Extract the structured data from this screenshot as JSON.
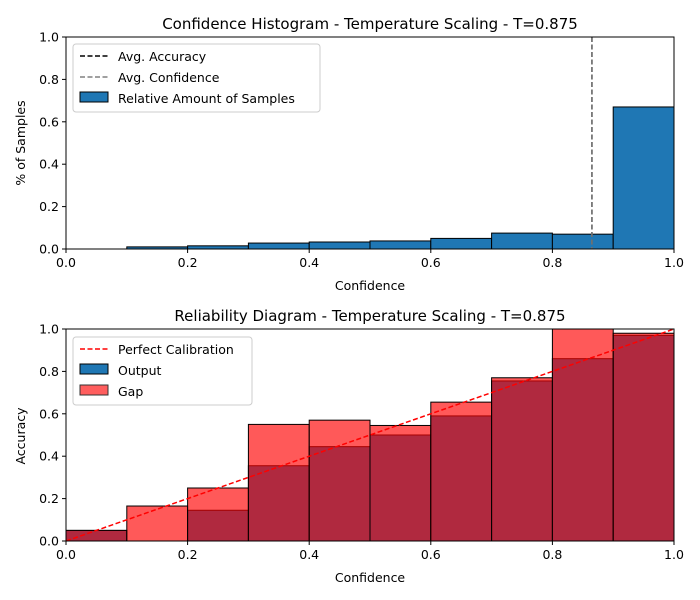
{
  "chart_data": [
    {
      "type": "bar",
      "title": "Confidence Histogram - Temperature Scaling - T=0.875",
      "xlabel": "Confidence",
      "ylabel": "% of Samples",
      "xlim": [
        0.0,
        1.0
      ],
      "ylim": [
        0.0,
        1.0
      ],
      "xticks": [
        "0.0",
        "0.2",
        "0.4",
        "0.6",
        "0.8",
        "1.0"
      ],
      "yticks": [
        "0.0",
        "0.2",
        "0.4",
        "0.6",
        "0.8",
        "1.0"
      ],
      "bins": [
        0.0,
        0.1,
        0.2,
        0.3,
        0.4,
        0.5,
        0.6,
        0.7,
        0.8,
        0.9
      ],
      "bin_width": 0.1,
      "series": [
        {
          "name": "Relative Amount of Samples",
          "values": [
            0.0,
            0.01,
            0.015,
            0.028,
            0.033,
            0.038,
            0.05,
            0.075,
            0.07,
            0.67
          ],
          "color": "#1f77b4"
        }
      ],
      "avg_accuracy": 0.865,
      "avg_confidence": 0.865,
      "legend": {
        "position": "top-left",
        "entries": [
          {
            "label": "Avg. Accuracy",
            "style": "dashed",
            "color": "#000000"
          },
          {
            "label": "Avg. Confidence",
            "style": "dashed",
            "color": "#808080"
          },
          {
            "label": "Relative Amount of Samples",
            "style": "patch",
            "color": "#1f77b4"
          }
        ]
      },
      "grid": false
    },
    {
      "type": "bar",
      "title": "Reliability Diagram - Temperature Scaling - T=0.875",
      "xlabel": "Confidence",
      "ylabel": "Accuracy",
      "xlim": [
        0.0,
        1.0
      ],
      "ylim": [
        0.0,
        1.0
      ],
      "xticks": [
        "0.0",
        "0.2",
        "0.4",
        "0.6",
        "0.8",
        "1.0"
      ],
      "yticks": [
        "0.0",
        "0.2",
        "0.4",
        "0.6",
        "0.8",
        "1.0"
      ],
      "bins": [
        0.0,
        0.1,
        0.2,
        0.3,
        0.4,
        0.5,
        0.6,
        0.7,
        0.8,
        0.9
      ],
      "bin_width": 0.1,
      "series": [
        {
          "name": "Output",
          "values": [
            0.05,
            0.0,
            0.145,
            0.355,
            0.445,
            0.5,
            0.59,
            0.755,
            0.86,
            0.97
          ],
          "color": "#1f77b4"
        },
        {
          "name": "Gap",
          "values": [
            0.05,
            0.165,
            0.25,
            0.55,
            0.57,
            0.545,
            0.655,
            0.77,
            1.0,
            0.98
          ],
          "color": "#ff0000",
          "alpha": 0.65
        }
      ],
      "perfect_calibration": {
        "name": "Perfect Calibration",
        "color": "#ff0000",
        "style": "dashed"
      },
      "legend": {
        "position": "top-left",
        "entries": [
          {
            "label": "Perfect Calibration",
            "style": "dashed",
            "color": "#ff0000"
          },
          {
            "label": "Output",
            "style": "patch",
            "color": "#1f77b4"
          },
          {
            "label": "Gap",
            "style": "patch",
            "color": "#ff5e5e"
          }
        ]
      },
      "grid": false
    }
  ]
}
